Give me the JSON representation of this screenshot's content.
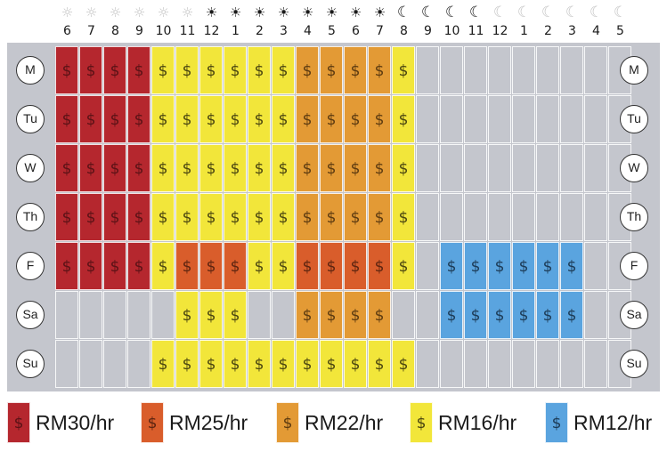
{
  "hours": [
    {
      "label": "6",
      "icon": "sun-icon",
      "shade": "pale"
    },
    {
      "label": "7",
      "icon": "sun-icon",
      "shade": "pale"
    },
    {
      "label": "8",
      "icon": "sun-icon",
      "shade": "pale"
    },
    {
      "label": "9",
      "icon": "sun-icon",
      "shade": "pale"
    },
    {
      "label": "10",
      "icon": "sun-icon",
      "shade": "pale"
    },
    {
      "label": "11",
      "icon": "sun-icon",
      "shade": "pale"
    },
    {
      "label": "12",
      "icon": "sun-icon",
      "shade": "dark"
    },
    {
      "label": "1",
      "icon": "sun-icon",
      "shade": "dark"
    },
    {
      "label": "2",
      "icon": "sun-icon",
      "shade": "dark"
    },
    {
      "label": "3",
      "icon": "sun-icon",
      "shade": "dark"
    },
    {
      "label": "4",
      "icon": "sun-icon",
      "shade": "dark"
    },
    {
      "label": "5",
      "icon": "sun-icon",
      "shade": "dark"
    },
    {
      "label": "6",
      "icon": "sun-icon",
      "shade": "dark"
    },
    {
      "label": "7",
      "icon": "sun-icon",
      "shade": "dark"
    },
    {
      "label": "8",
      "icon": "moon-icon",
      "shade": "dark"
    },
    {
      "label": "9",
      "icon": "moon-icon",
      "shade": "dark"
    },
    {
      "label": "10",
      "icon": "moon-icon",
      "shade": "dark"
    },
    {
      "label": "11",
      "icon": "moon-icon",
      "shade": "dark"
    },
    {
      "label": "12",
      "icon": "moon-icon",
      "shade": "pale"
    },
    {
      "label": "1",
      "icon": "moon-icon",
      "shade": "pale"
    },
    {
      "label": "2",
      "icon": "moon-icon",
      "shade": "pale"
    },
    {
      "label": "3",
      "icon": "moon-icon",
      "shade": "pale"
    },
    {
      "label": "4",
      "icon": "moon-icon",
      "shade": "pale"
    },
    {
      "label": "5",
      "icon": "moon-icon",
      "shade": "pale"
    }
  ],
  "days": [
    {
      "label": "M",
      "rates": [
        "30",
        "30",
        "30",
        "30",
        "16",
        "16",
        "16",
        "16",
        "16",
        "16",
        "22",
        "22",
        "22",
        "22",
        "16",
        "",
        "",
        "",
        "",
        "",
        "",
        "",
        "",
        ""
      ]
    },
    {
      "label": "Tu",
      "rates": [
        "30",
        "30",
        "30",
        "30",
        "16",
        "16",
        "16",
        "16",
        "16",
        "16",
        "22",
        "22",
        "22",
        "22",
        "16",
        "",
        "",
        "",
        "",
        "",
        "",
        "",
        "",
        ""
      ]
    },
    {
      "label": "W",
      "rates": [
        "30",
        "30",
        "30",
        "30",
        "16",
        "16",
        "16",
        "16",
        "16",
        "16",
        "22",
        "22",
        "22",
        "22",
        "16",
        "",
        "",
        "",
        "",
        "",
        "",
        "",
        "",
        ""
      ]
    },
    {
      "label": "Th",
      "rates": [
        "30",
        "30",
        "30",
        "30",
        "16",
        "16",
        "16",
        "16",
        "16",
        "16",
        "22",
        "22",
        "22",
        "22",
        "16",
        "",
        "",
        "",
        "",
        "",
        "",
        "",
        "",
        ""
      ]
    },
    {
      "label": "F",
      "rates": [
        "30",
        "30",
        "30",
        "30",
        "16",
        "25",
        "25",
        "25",
        "16",
        "16",
        "25",
        "25",
        "25",
        "25",
        "16",
        "",
        "12",
        "12",
        "12",
        "12",
        "12",
        "12",
        "",
        ""
      ]
    },
    {
      "label": "Sa",
      "rates": [
        "",
        "",
        "",
        "",
        "",
        "16",
        "16",
        "16",
        "",
        "",
        "22",
        "22",
        "22",
        "22",
        "",
        "",
        "12",
        "12",
        "12",
        "12",
        "12",
        "12",
        "",
        ""
      ]
    },
    {
      "label": "Su",
      "rates": [
        "",
        "",
        "",
        "",
        "16",
        "16",
        "16",
        "16",
        "16",
        "16",
        "16",
        "16",
        "16",
        "16",
        "16",
        "",
        "",
        "",
        "",
        "",
        "",
        "",
        "",
        ""
      ]
    }
  ],
  "cell_symbol": "$",
  "rates": {
    "30": {
      "label": "RM30/hr",
      "color": "#b5272e"
    },
    "25": {
      "label": "RM25/hr",
      "color": "#d95d2b"
    },
    "22": {
      "label": "RM22/hr",
      "color": "#e39a35"
    },
    "16": {
      "label": "RM16/hr",
      "color": "#f2e63a"
    },
    "12": {
      "label": "RM12/hr",
      "color": "#5aa4df"
    }
  },
  "legend": [
    {
      "rate": "30",
      "label": "RM30/hr"
    },
    {
      "rate": "25",
      "label": "RM25/hr"
    },
    {
      "rate": "22",
      "label": "RM22/hr"
    },
    {
      "rate": "16",
      "label": "RM16/hr"
    },
    {
      "rate": "12",
      "label": "RM12/hr"
    }
  ],
  "colors": {
    "closed": "#c4c6cd",
    "background": "#ffffff"
  }
}
